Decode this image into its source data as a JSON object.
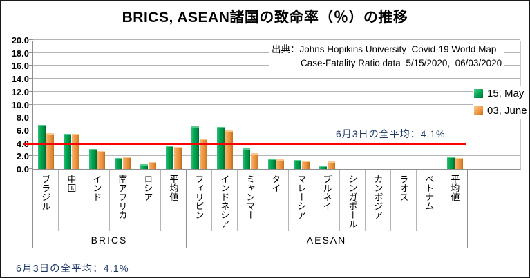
{
  "title": "BRICS, ASEAN諸国の致命率（％）の推移",
  "source": {
    "line1": "出典：Johns Hopikins University  Covid-19 World Map",
    "line2": "Case-Fatality Ratio data  5/15/2020,  06/03/2020"
  },
  "annotation": "6月3日の全平均：4.1%",
  "footnote": "6月3日の全平均：4.1%",
  "colors": {
    "series_may": "#00A551",
    "series_june": "#F09A45",
    "reference_line": "#FE0000",
    "gridline": "#B4B4B4",
    "annotation_text": "#1F3864",
    "background": "#FFFFFF"
  },
  "chart_data": {
    "type": "bar",
    "title": "BRICS, ASEAN諸国の致命率（％）の推移",
    "xlabel": "",
    "ylabel": "",
    "ylim": [
      0,
      20
    ],
    "ytick_step": 2,
    "ytick_labels": [
      "0.0",
      "2.0",
      "4.0",
      "6.0",
      "8.0",
      "10.0",
      "12.0",
      "14.0",
      "16.0",
      "18.0",
      "20.0"
    ],
    "grid": true,
    "legend_position": "right",
    "categories": [
      "ブラジル",
      "中国",
      "インド",
      "南アフリカ",
      "ロシア",
      "平均値",
      "フィリピン",
      "インドネシア",
      "ミャンマー",
      "タイ",
      "マレーシア",
      "ブルネイ",
      "シンガポール",
      "カンボジア",
      "ラオス",
      "ベトナム",
      "平均値"
    ],
    "category_groups": [
      {
        "label": "BRICS",
        "span": [
          0,
          5
        ]
      },
      {
        "label": "AESAN",
        "span": [
          6,
          16
        ]
      }
    ],
    "series": [
      {
        "name": "15, May",
        "color": "#00A551",
        "values": [
          6.8,
          5.5,
          3.1,
          1.7,
          0.8,
          3.6,
          6.6,
          6.5,
          3.2,
          1.6,
          1.4,
          0.5,
          0.0,
          0.0,
          0.0,
          0.0,
          1.9
        ]
      },
      {
        "name": "03, June",
        "color": "#F09A45",
        "values": [
          5.6,
          5.5,
          2.8,
          1.9,
          1.1,
          3.4,
          4.7,
          6.0,
          2.5,
          1.5,
          1.3,
          1.2,
          0.0,
          0.0,
          0.0,
          0.0,
          1.7
        ]
      }
    ],
    "reference_line": {
      "value": 4.1,
      "color": "#FE0000",
      "label": "6月3日の全平均：4.1%"
    }
  }
}
